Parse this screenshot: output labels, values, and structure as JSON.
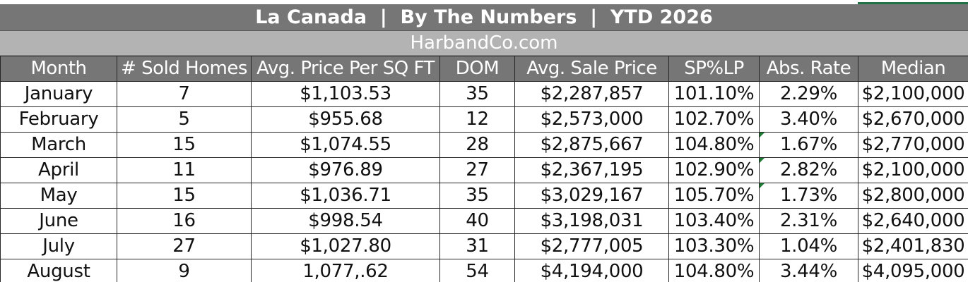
{
  "header": {
    "title": "La Canada  |  By The Numbers  |  YTD 2026",
    "website": "HarbandCo.com"
  },
  "table": {
    "columns": [
      "Month",
      "# Sold Homes",
      "Avg. Price Per SQ FT",
      "DOM",
      "Avg. Sale Price",
      "SP%LP",
      "Abs. Rate",
      "Median"
    ],
    "rows": [
      [
        "January",
        "7",
        "$1,103.53",
        "35",
        "$2,287,857",
        "101.10%",
        "2.29%",
        "$2,100,000"
      ],
      [
        "February",
        "5",
        "$955.68",
        "12",
        "$2,573,000",
        "102.70%",
        "3.40%",
        "$2,670,000"
      ],
      [
        "March",
        "15",
        "$1,074.55",
        "28",
        "$2,875,667",
        "104.80%",
        "1.67%",
        "$2,770,000"
      ],
      [
        "April",
        "11",
        "$976.89",
        "27",
        "$2,367,195",
        "102.90%",
        "2.82%",
        "$2,100,000"
      ],
      [
        "May",
        "15",
        "$1,036.71",
        "35",
        "$3,029,167",
        "105.70%",
        "1.73%",
        "$2,800,000"
      ],
      [
        "June",
        "16",
        "$998.54",
        "40",
        "$3,198,031",
        "103.40%",
        "2.31%",
        "$2,640,000"
      ],
      [
        "July",
        "27",
        "$1,027.80",
        "31",
        "$2,777,005",
        "103.30%",
        "1.04%",
        "$2,401,830"
      ],
      [
        "August",
        "9",
        "1,077,.62",
        "54",
        "$4,194,000",
        "104.80%",
        "3.44%",
        "$4,095,000"
      ]
    ]
  },
  "colors": {
    "header_fill": "#767676",
    "website_fill": "#b3b3b3",
    "header_text": "#ffffff",
    "cell_border": "#262626",
    "error_flag": "#1e7b34"
  }
}
